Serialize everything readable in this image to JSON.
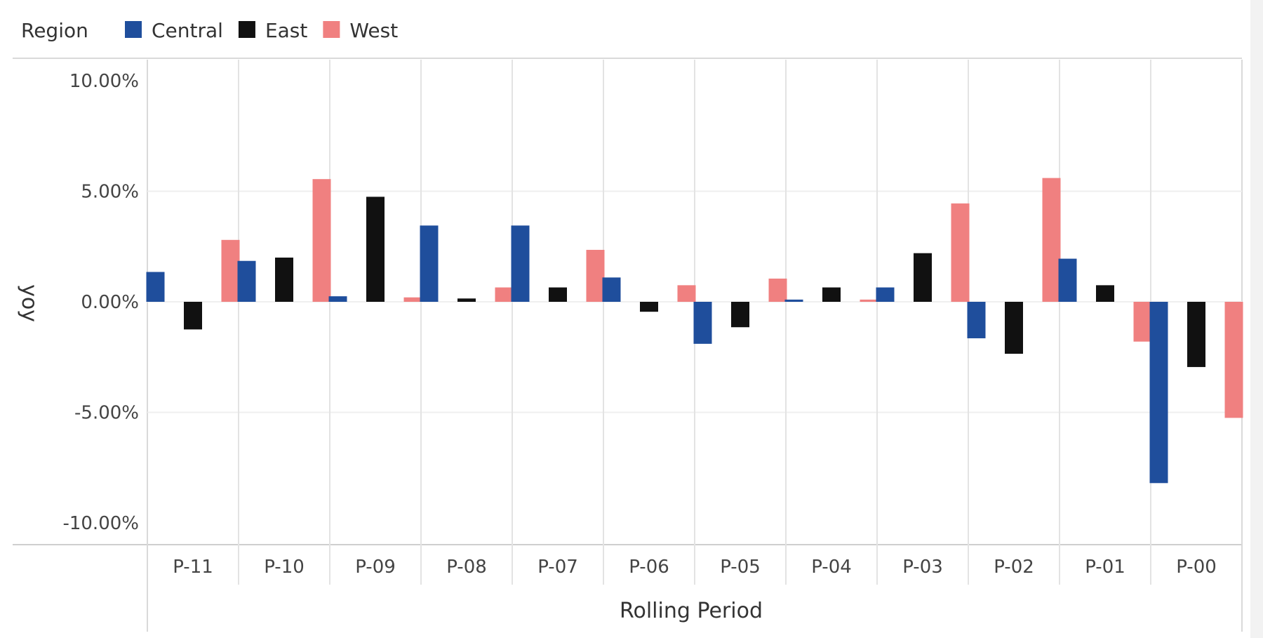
{
  "chart_data": {
    "type": "bar",
    "legend": {
      "title": "Region",
      "position": "top-left"
    },
    "categories": [
      "P-11",
      "P-10",
      "P-09",
      "P-08",
      "P-07",
      "P-06",
      "P-05",
      "P-04",
      "P-03",
      "P-02",
      "P-01",
      "P-00"
    ],
    "series": [
      {
        "name": "Central",
        "color": "#1f4e9c",
        "values": [
          1.35,
          1.85,
          0.25,
          3.45,
          3.45,
          1.1,
          -1.9,
          0.1,
          0.65,
          -1.65,
          1.95,
          -8.2
        ]
      },
      {
        "name": "East",
        "color": "#111111",
        "values": [
          -1.25,
          2.0,
          4.75,
          0.15,
          0.65,
          -0.45,
          -1.15,
          0.65,
          2.2,
          -2.35,
          0.75,
          -2.95
        ]
      },
      {
        "name": "West",
        "color": "#f08080",
        "values": [
          2.8,
          5.55,
          0.2,
          0.65,
          2.35,
          0.75,
          1.05,
          0.1,
          4.45,
          5.6,
          -1.8,
          -5.25
        ]
      }
    ],
    "ylabel": "yoy",
    "xlabel": "Rolling Period",
    "ylim": [
      -10,
      10
    ],
    "yticks": [
      "10.00%",
      "5.00%",
      "0.00%",
      "-5.00%",
      "-10.00%"
    ],
    "ytick_values": [
      10,
      5,
      0,
      -5,
      -10
    ],
    "grid": true
  }
}
